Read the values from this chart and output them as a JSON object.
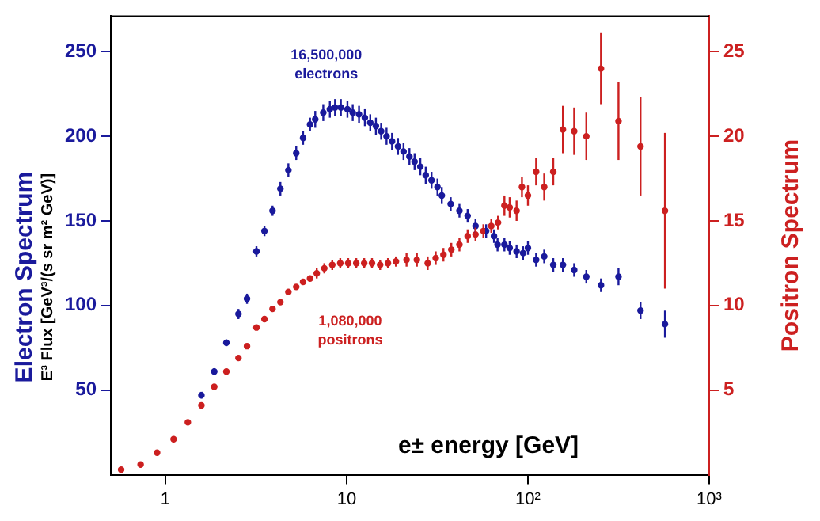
{
  "chart_data": {
    "type": "scatter",
    "ylabel": "Electron Spectrum\nE³ Flux [GeV³/(s sr m² GeV)]",
    "y2label": "Positron Spectrum",
    "xlabel": "e± energy [GeV]",
    "annotations": [
      "16,500,000\nelectrons",
      "1,080,000\npositrons"
    ],
    "log": "x",
    "xlim": [
      0.5,
      1000
    ],
    "xticks": [
      1,
      10,
      {
        "value": 100,
        "label": "10²"
      },
      {
        "value": 1000,
        "label": "10³"
      }
    ],
    "ylim": [
      0,
      271
    ],
    "yticks": [
      50,
      100,
      150,
      200,
      250
    ],
    "y2lim": [
      0,
      27.1
    ],
    "y2ticks": [
      5,
      10,
      15,
      20,
      25
    ],
    "grid": false,
    "legend": false,
    "marker": "circle",
    "series": [
      {
        "color": "#1a1a9c",
        "x": [
          1.58,
          1.86,
          2.17,
          2.53,
          2.82,
          3.18,
          3.52,
          3.9,
          4.31,
          4.77,
          5.27,
          5.75,
          6.28,
          6.71,
          7.43,
          8.08,
          8.63,
          9.29,
          10.1,
          10.8,
          11.7,
          12.6,
          13.5,
          14.5,
          15.5,
          16.6,
          17.8,
          19.2,
          20.6,
          22.2,
          23.7,
          25.5,
          27.3,
          29.4,
          31.7,
          33.5,
          37.5,
          41.9,
          46.5,
          51.4,
          58.8,
          65,
          68,
          74.2,
          79.3,
          86.6,
          94,
          100,
          111,
          123,
          138,
          156,
          180,
          210,
          253,
          316,
          418,
          570
        ],
        "values": [
          47,
          61,
          78,
          95,
          104,
          132,
          144,
          156,
          169,
          180,
          190,
          199,
          207,
          210,
          214,
          216,
          217,
          217,
          216,
          214,
          213,
          211,
          208,
          206,
          203,
          200,
          197,
          194,
          191,
          188,
          185,
          182,
          177,
          174,
          170,
          165,
          160,
          156,
          153,
          147,
          144,
          141,
          136,
          136,
          134,
          132,
          131,
          134,
          127,
          129,
          124,
          124,
          121,
          117,
          112,
          117,
          97,
          89
        ],
        "errors": [
          2,
          2,
          2,
          3,
          3,
          3,
          3,
          3,
          4,
          4,
          4,
          4,
          4,
          5,
          5,
          5,
          5,
          5,
          5,
          5,
          5,
          5,
          5,
          5,
          5,
          5,
          5,
          5,
          5,
          5,
          5,
          5,
          5,
          5,
          5,
          5,
          4,
          4,
          4,
          4,
          4,
          4,
          4,
          4,
          4,
          4,
          4,
          4,
          4,
          4,
          4,
          4,
          4,
          4,
          4,
          5,
          5,
          8
        ]
      },
      {
        "color": "#cc2020",
        "axis": "y2",
        "x": [
          0.57,
          0.73,
          0.9,
          1.11,
          1.33,
          1.58,
          1.86,
          2.17,
          2.53,
          2.82,
          3.18,
          3.52,
          3.9,
          4.31,
          4.77,
          5.27,
          5.75,
          6.28,
          6.84,
          7.53,
          8.33,
          9.22,
          10.2,
          11.3,
          12.5,
          13.8,
          15.3,
          16.9,
          18.7,
          21.4,
          24.4,
          28,
          31,
          34.2,
          37.8,
          41.9,
          46.5,
          51.4,
          56.8,
          62.8,
          68.4,
          74.2,
          79.3,
          86.6,
          92.7,
          100,
          111,
          123,
          138,
          156,
          180,
          210,
          253,
          316,
          418,
          570
        ],
        "values": [
          0.3,
          0.6,
          1.3,
          2.1,
          3.1,
          4.1,
          5.2,
          6.1,
          6.9,
          7.6,
          8.7,
          9.2,
          9.8,
          10.2,
          10.8,
          11.1,
          11.4,
          11.6,
          11.9,
          12.2,
          12.4,
          12.5,
          12.5,
          12.5,
          12.5,
          12.5,
          12.4,
          12.5,
          12.6,
          12.7,
          12.7,
          12.5,
          12.8,
          13.0,
          13.3,
          13.6,
          14.1,
          14.2,
          14.4,
          14.7,
          14.9,
          15.9,
          15.8,
          15.6,
          17.0,
          16.5,
          17.9,
          17.0,
          17.9,
          20.4,
          20.3,
          20.0,
          24.0,
          20.9,
          19.4,
          15.6
        ],
        "errors": [
          0.1,
          0.1,
          0.1,
          0.1,
          0.1,
          0.1,
          0.1,
          0.1,
          0.1,
          0.1,
          0.1,
          0.1,
          0.1,
          0.1,
          0.1,
          0.1,
          0.1,
          0.1,
          0.3,
          0.3,
          0.3,
          0.3,
          0.3,
          0.3,
          0.3,
          0.3,
          0.3,
          0.3,
          0.3,
          0.4,
          0.4,
          0.4,
          0.4,
          0.4,
          0.4,
          0.4,
          0.4,
          0.4,
          0.4,
          0.4,
          0.4,
          0.6,
          0.6,
          0.6,
          0.6,
          0.6,
          0.8,
          0.8,
          0.8,
          1.4,
          1.4,
          1.4,
          2.1,
          2.3,
          2.9,
          4.6
        ]
      }
    ]
  }
}
